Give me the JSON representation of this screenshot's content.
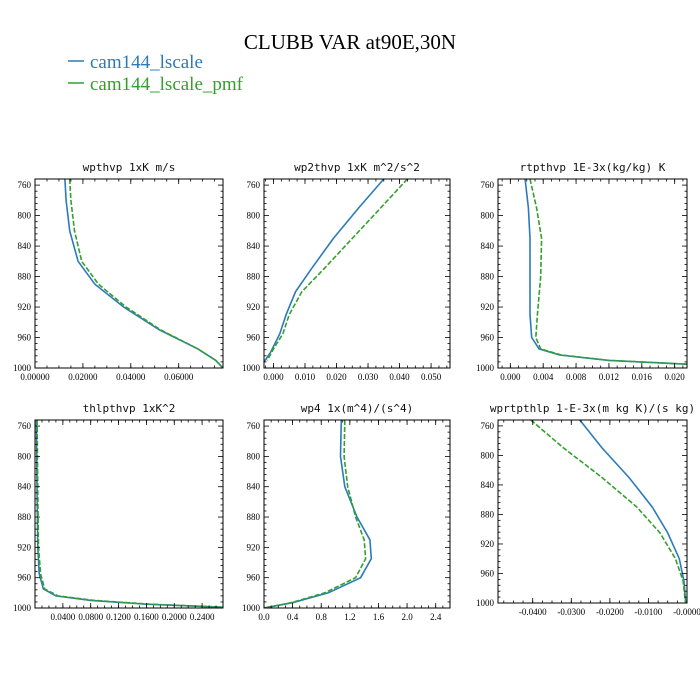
{
  "figure": {
    "title": "CLUBB VAR at90E,30N",
    "legend": [
      {
        "label": "cam144_lscale",
        "color": "#2b7bb9",
        "dash": "none"
      },
      {
        "label": "cam144_lscale_pmf",
        "color": "#33a02c",
        "dash": "5,2"
      }
    ]
  },
  "chart_data": [
    {
      "type": "line",
      "title": "wpthvp  1xK m/s",
      "xlim": [
        0.0,
        0.0785
      ],
      "ylim": [
        1000,
        752
      ],
      "yticks": [
        760,
        800,
        840,
        880,
        920,
        960,
        1000
      ],
      "xticks": [
        0.0,
        0.02,
        0.04,
        0.06
      ],
      "xticklabels": [
        "0.00000",
        "0.02000",
        "0.04000",
        "0.06000"
      ],
      "series": [
        {
          "name": "cam144_lscale",
          "points": [
            [
              0.0125,
              752
            ],
            [
              0.013,
              780
            ],
            [
              0.0145,
              820
            ],
            [
              0.018,
              860
            ],
            [
              0.025,
              890
            ],
            [
              0.037,
              920
            ],
            [
              0.052,
              950
            ],
            [
              0.068,
              975
            ],
            [
              0.0755,
              990
            ],
            [
              0.0785,
              1000
            ]
          ]
        },
        {
          "name": "cam144_lscale_pmf",
          "points": [
            [
              0.0145,
              752
            ],
            [
              0.015,
              780
            ],
            [
              0.0165,
              820
            ],
            [
              0.0195,
              860
            ],
            [
              0.0265,
              890
            ],
            [
              0.038,
              920
            ],
            [
              0.0525,
              950
            ],
            [
              0.068,
              975
            ],
            [
              0.0755,
              990
            ],
            [
              0.0785,
              1000
            ]
          ]
        }
      ]
    },
    {
      "type": "line",
      "title": "wp2thvp  1xK m^2/s^2",
      "xlim": [
        -0.003,
        0.056
      ],
      "ylim": [
        1000,
        752
      ],
      "yticks": [
        760,
        800,
        840,
        880,
        920,
        960,
        1000
      ],
      "xticks": [
        0.0,
        0.01,
        0.02,
        0.03,
        0.04,
        0.05
      ],
      "xticklabels": [
        "0.000",
        "0.010",
        "0.020",
        "0.030",
        "0.040",
        "0.050"
      ],
      "series": [
        {
          "name": "cam144_lscale",
          "points": [
            [
              0.035,
              752
            ],
            [
              0.027,
              790
            ],
            [
              0.019,
              830
            ],
            [
              0.012,
              870
            ],
            [
              0.007,
              900
            ],
            [
              0.004,
              930
            ],
            [
              0.002,
              955
            ],
            [
              -0.001,
              980
            ],
            [
              -0.003,
              992
            ]
          ]
        },
        {
          "name": "cam144_lscale_pmf",
          "points": [
            [
              0.0425,
              752
            ],
            [
              0.034,
              790
            ],
            [
              0.025,
              830
            ],
            [
              0.016,
              870
            ],
            [
              0.009,
              900
            ],
            [
              0.005,
              930
            ],
            [
              0.003,
              955
            ],
            [
              0.0,
              975
            ],
            [
              -0.002,
              990
            ]
          ]
        }
      ]
    },
    {
      "type": "line",
      "title": "rtpthvp  1E-3x(kg/kg) K",
      "xlim": [
        -0.0015,
        0.0215
      ],
      "ylim": [
        1000,
        752
      ],
      "yticks": [
        760,
        800,
        840,
        880,
        920,
        960,
        1000
      ],
      "xticks": [
        0.0,
        0.004,
        0.008,
        0.012,
        0.016,
        0.02
      ],
      "xticklabels": [
        "0.000",
        "0.004",
        "0.008",
        "0.012",
        "0.016",
        "0.020"
      ],
      "series": [
        {
          "name": "cam144_lscale",
          "points": [
            [
              0.0018,
              752
            ],
            [
              0.0022,
              790
            ],
            [
              0.0024,
              830
            ],
            [
              0.0024,
              880
            ],
            [
              0.0024,
              930
            ],
            [
              0.0026,
              960
            ],
            [
              0.0035,
              975
            ],
            [
              0.006,
              983
            ],
            [
              0.012,
              990
            ],
            [
              0.0215,
              995
            ]
          ]
        },
        {
          "name": "cam144_lscale_pmf",
          "points": [
            [
              0.0024,
              752
            ],
            [
              0.0032,
              790
            ],
            [
              0.0038,
              830
            ],
            [
              0.0037,
              880
            ],
            [
              0.0033,
              930
            ],
            [
              0.0031,
              960
            ],
            [
              0.0037,
              975
            ],
            [
              0.0062,
              983
            ],
            [
              0.012,
              990
            ],
            [
              0.0215,
              995
            ]
          ]
        }
      ]
    },
    {
      "type": "line",
      "title": "thlpthvp  1xK^2",
      "xlim": [
        0.0,
        0.27
      ],
      "ylim": [
        1000,
        752
      ],
      "yticks": [
        760,
        800,
        840,
        880,
        920,
        960,
        1000
      ],
      "xticks": [
        0.04,
        0.08,
        0.12,
        0.16,
        0.2,
        0.24
      ],
      "xticklabels": [
        "0.0400",
        "0.0800",
        "0.1200",
        "0.1600",
        "0.2000",
        "0.2400"
      ],
      "series": [
        {
          "name": "cam144_lscale",
          "points": [
            [
              0.002,
              752
            ],
            [
              0.003,
              850
            ],
            [
              0.004,
              920
            ],
            [
              0.006,
              955
            ],
            [
              0.012,
              975
            ],
            [
              0.03,
              984
            ],
            [
              0.08,
              990
            ],
            [
              0.16,
              995
            ],
            [
              0.27,
              999
            ]
          ]
        },
        {
          "name": "cam144_lscale_pmf",
          "points": [
            [
              0.003,
              752
            ],
            [
              0.004,
              850
            ],
            [
              0.005,
              920
            ],
            [
              0.008,
              955
            ],
            [
              0.014,
              975
            ],
            [
              0.033,
              984
            ],
            [
              0.085,
              990
            ],
            [
              0.165,
              995
            ],
            [
              0.27,
              999
            ]
          ]
        }
      ]
    },
    {
      "type": "line",
      "title": "wp4  1x(m^4)/(s^4)",
      "xlim": [
        0.0,
        2.6
      ],
      "ylim": [
        1000,
        752
      ],
      "yticks": [
        760,
        800,
        840,
        880,
        920,
        960,
        1000
      ],
      "xticks": [
        0.0,
        0.4,
        0.8,
        1.2,
        1.6,
        2.0,
        2.4
      ],
      "xticklabels": [
        "0.0",
        "0.4",
        "0.8",
        "1.2",
        "1.6",
        "2.0",
        "2.4"
      ],
      "series": [
        {
          "name": "cam144_lscale",
          "points": [
            [
              1.08,
              752
            ],
            [
              1.07,
              800
            ],
            [
              1.13,
              840
            ],
            [
              1.3,
              880
            ],
            [
              1.48,
              910
            ],
            [
              1.5,
              935
            ],
            [
              1.35,
              960
            ],
            [
              0.9,
              980
            ],
            [
              0.4,
              993
            ],
            [
              0.0,
              1000
            ]
          ]
        },
        {
          "name": "cam144_lscale_pmf",
          "points": [
            [
              1.13,
              752
            ],
            [
              1.12,
              800
            ],
            [
              1.17,
              840
            ],
            [
              1.28,
              880
            ],
            [
              1.4,
              910
            ],
            [
              1.42,
              935
            ],
            [
              1.28,
              960
            ],
            [
              0.85,
              980
            ],
            [
              0.38,
              993
            ],
            [
              0.0,
              1000
            ]
          ]
        }
      ]
    },
    {
      "type": "line",
      "title": "wprtpthlp  1-E-3x(m kg K)/(s kg)",
      "xlim": [
        -0.049,
        0.0
      ],
      "ylim": [
        1000,
        752
      ],
      "yticks": [
        760,
        800,
        840,
        880,
        920,
        960,
        1000
      ],
      "xticks": [
        -0.04,
        -0.03,
        -0.02,
        -0.01,
        0.0
      ],
      "xticklabels": [
        "-0.0400",
        "-0.0300",
        "-0.0200",
        "-0.0100",
        "-0.0000"
      ],
      "series": [
        {
          "name": "cam144_lscale",
          "points": [
            [
              -0.0278,
              752
            ],
            [
              -0.022,
              790
            ],
            [
              -0.015,
              830
            ],
            [
              -0.009,
              870
            ],
            [
              -0.005,
              905
            ],
            [
              -0.002,
              940
            ],
            [
              -0.0008,
              970
            ],
            [
              -0.0003,
              1000
            ]
          ]
        },
        {
          "name": "cam144_lscale_pmf",
          "points": [
            [
              -0.0405,
              752
            ],
            [
              -0.032,
              790
            ],
            [
              -0.022,
              830
            ],
            [
              -0.013,
              870
            ],
            [
              -0.007,
              905
            ],
            [
              -0.003,
              940
            ],
            [
              -0.001,
              970
            ],
            [
              -0.0004,
              1000
            ]
          ]
        }
      ]
    }
  ]
}
